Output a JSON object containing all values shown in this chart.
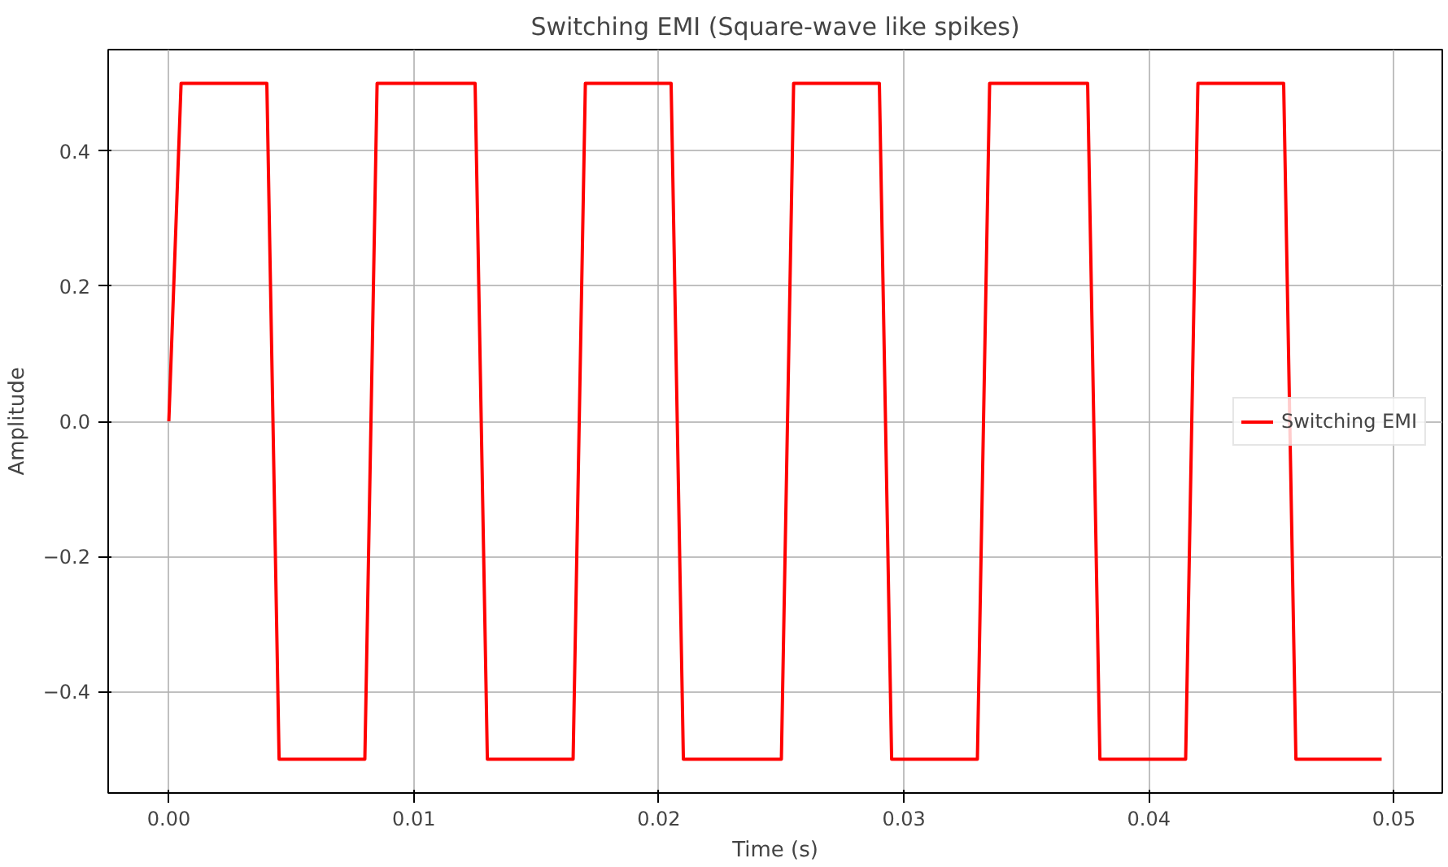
{
  "chart_data": {
    "type": "line",
    "title": "Switching EMI (Square-wave like spikes)",
    "xlabel": "Time (s)",
    "ylabel": "Amplitude",
    "x": [
      0,
      0.0005,
      0.004,
      0.0045,
      0.008,
      0.0085,
      0.0125,
      0.013,
      0.0165,
      0.017,
      0.0205,
      0.021,
      0.025,
      0.0255,
      0.029,
      0.0295,
      0.033,
      0.0335,
      0.0375,
      0.038,
      0.0415,
      0.042,
      0.0455,
      0.046,
      0.0495
    ],
    "series": [
      {
        "name": "Switching EMI",
        "color": "#ff0000",
        "values": [
          0,
          0.5,
          0.5,
          -0.5,
          -0.5,
          0.5,
          0.5,
          -0.5,
          -0.5,
          0.5,
          0.5,
          -0.5,
          -0.5,
          0.5,
          0.5,
          -0.5,
          -0.5,
          0.5,
          0.5,
          -0.5,
          -0.5,
          0.5,
          0.5,
          -0.5,
          -0.5
        ]
      }
    ],
    "xlim": [
      -0.002475,
      0.051975
    ],
    "ylim": [
      -0.55,
      0.55
    ],
    "xticks": [
      {
        "value": 0,
        "label": "0.00"
      },
      {
        "value": 0.01,
        "label": "0.01"
      },
      {
        "value": 0.02,
        "label": "0.02"
      },
      {
        "value": 0.03,
        "label": "0.03"
      },
      {
        "value": 0.04,
        "label": "0.04"
      },
      {
        "value": 0.05,
        "label": "0.05"
      }
    ],
    "yticks": [
      {
        "value": -0.4,
        "label": "−0.4"
      },
      {
        "value": -0.2,
        "label": "−0.2"
      },
      {
        "value": 0,
        "label": "0.0"
      },
      {
        "value": 0.2,
        "label": "0.2"
      },
      {
        "value": 0.4,
        "label": "0.4"
      }
    ],
    "grid": true,
    "legend": "right"
  }
}
